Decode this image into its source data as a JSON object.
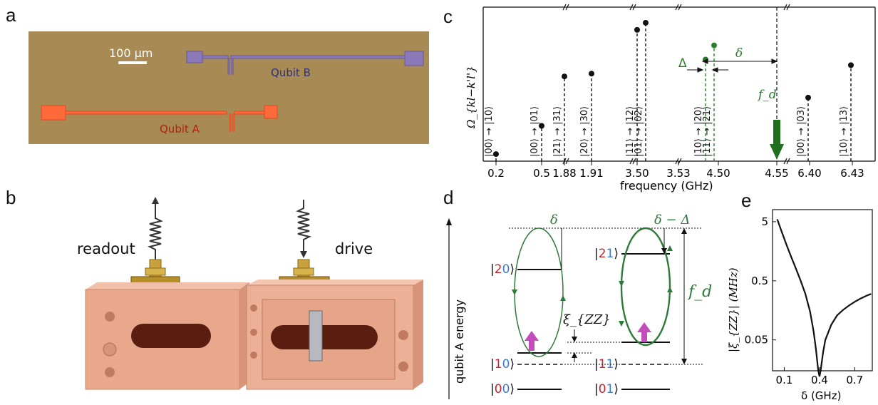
{
  "panels": {
    "a": "a",
    "b": "b",
    "c": "c",
    "d": "d",
    "e": "e"
  },
  "panel_a": {
    "scalebar_label": "100 μm",
    "qubit_b_label": "Qubit B",
    "qubit_a_label": "Qubit A",
    "colors": {
      "substrate": "#a88a55",
      "qubit_a": "#ff6a3a",
      "qubit_b": "#8a78b8",
      "label_a": "#b02010",
      "label_b": "#2b2f8a"
    }
  },
  "panel_b": {
    "readout_label": "readout",
    "drive_label": "drive",
    "colors": {
      "copper": "#e9a88c",
      "brass": "#c9a13a"
    }
  },
  "panel_c": {
    "ylabel": "Ω_{kl−k'l'}",
    "xlabel": "frequency (GHz)",
    "tick_labels": [
      "0.2",
      "0.5",
      "1.88",
      "1.91",
      "3.50",
      "3.53",
      "4.50",
      "4.55",
      "6.40",
      "6.43"
    ],
    "delta_label": "Δ",
    "small_delta_label": "δ",
    "fd_label": "f_d",
    "transitions": [
      {
        "label": "|00⟩ → |10⟩",
        "value": 0.05,
        "color": "black"
      },
      {
        "label": "|00⟩ → |01⟩",
        "value": 0.25,
        "color": "black"
      },
      {
        "label": "|21⟩ → |31⟩",
        "value": 0.6,
        "color": "black"
      },
      {
        "label": "|20⟩ → |30⟩",
        "value": 0.62,
        "color": "black"
      },
      {
        "label": "|11⟩ → |12⟩",
        "value": 0.93,
        "color": "black"
      },
      {
        "label": "|01⟩ → |02⟩",
        "value": 0.98,
        "color": "black"
      },
      {
        "label": "|10⟩ → |20⟩",
        "value": 0.72,
        "color": "green"
      },
      {
        "label": "|11⟩ → |21⟩",
        "value": 0.82,
        "color": "green"
      },
      {
        "label": "|00⟩ → |03⟩",
        "value": 0.45,
        "color": "black"
      },
      {
        "label": "|10⟩ → |13⟩",
        "value": 0.68,
        "color": "black"
      }
    ],
    "colors": {
      "green": "#2a7d2a",
      "drive_arrow": "#1f6f1f"
    }
  },
  "panel_d": {
    "ylabel": "qubit A energy",
    "levels_left": [
      {
        "k": "2",
        "l": "0"
      },
      {
        "k": "1",
        "l": "0"
      },
      {
        "k": "0",
        "l": "0"
      }
    ],
    "levels_right": [
      {
        "k": "2",
        "l": "1"
      },
      {
        "k": "1",
        "l": "1"
      },
      {
        "k": "0",
        "l": "1"
      }
    ],
    "delta_label": "δ",
    "delta_minus_label": "δ − Δ",
    "xi_label": "ξ_{ZZ}",
    "fd_label": "f_d",
    "colors": {
      "k": "#d0202a",
      "l": "#3a7ad0",
      "loop": "#2f7a3a",
      "pump": "#c34dbb"
    }
  },
  "panel_e": {
    "ylabel": "|ξ_{ZZ}| (MHz)",
    "xlabel": "δ (GHz)",
    "y_ticks": [
      "5",
      "0.5",
      "0.05"
    ],
    "x_ticks": [
      "0.1",
      "0.4",
      "0.7"
    ]
  },
  "chart_data": {
    "type": "line",
    "xlabel": "δ (GHz)",
    "ylabel": "|ξ_{ZZ}| (MHz)",
    "yscale": "log",
    "ylim": [
      0.015,
      8
    ],
    "xlim": [
      0.0,
      0.85
    ],
    "x": [
      0.04,
      0.08,
      0.12,
      0.16,
      0.2,
      0.24,
      0.28,
      0.32,
      0.35,
      0.37,
      0.39,
      0.4,
      0.41,
      0.43,
      0.45,
      0.5,
      0.55,
      0.6,
      0.65,
      0.7,
      0.75,
      0.8,
      0.84
    ],
    "values": [
      5.5,
      3.3,
      2.0,
      1.25,
      0.8,
      0.5,
      0.3,
      0.15,
      0.07,
      0.035,
      0.015,
      0.012,
      0.015,
      0.03,
      0.05,
      0.09,
      0.13,
      0.16,
      0.19,
      0.22,
      0.25,
      0.28,
      0.3
    ]
  }
}
